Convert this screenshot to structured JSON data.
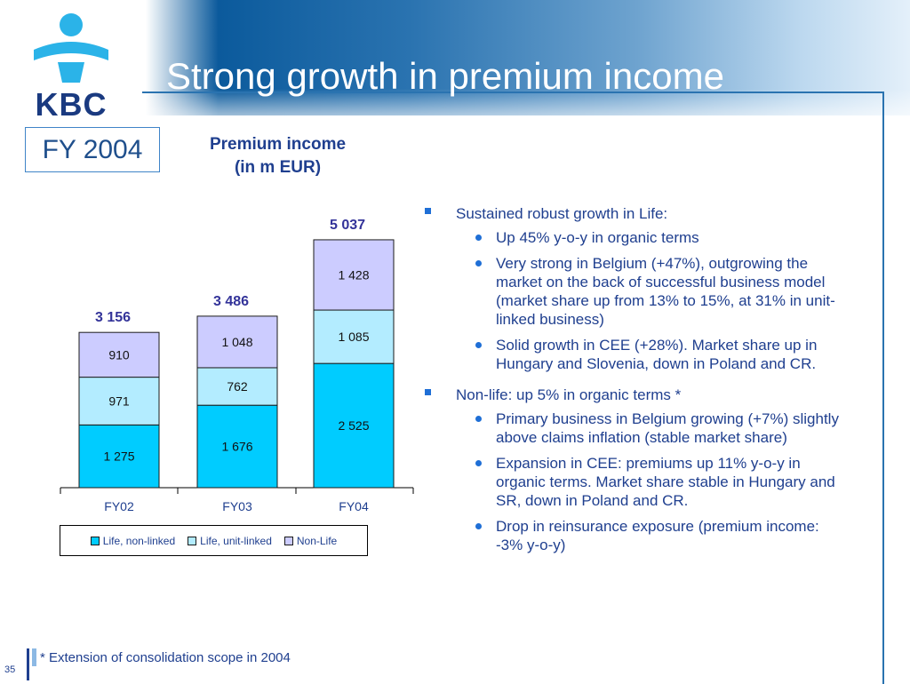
{
  "slide": {
    "title": "Strong growth in premium income",
    "period_box": "FY 2004",
    "page_number": "35",
    "footnote": "* Extension of consolidation scope in 2004",
    "logo_text": "KBC"
  },
  "colors": {
    "title_text": "#ffffff",
    "body_text": "#1f3f8f",
    "life_non_linked": "#00ccff",
    "life_unit_linked": "#b3ecff",
    "non_life": "#ccccff",
    "total_label": "#333399",
    "bullet_marker": "#1f6fd6"
  },
  "chart_data": {
    "type": "bar",
    "stacked": true,
    "title": "Premium income\n(in m EUR)",
    "title_lines": [
      "Premium income",
      "(in m EUR)"
    ],
    "categories": [
      "FY02",
      "FY03",
      "FY04"
    ],
    "series": [
      {
        "name": "Life, non-linked",
        "values": [
          1275,
          1676,
          2525
        ],
        "labels": [
          "1 275",
          "1 676",
          "2 525"
        ],
        "color": "#00ccff"
      },
      {
        "name": "Life, unit-linked",
        "values": [
          971,
          762,
          1085
        ],
        "labels": [
          "971",
          "762",
          "1 085"
        ],
        "color": "#b3ecff"
      },
      {
        "name": "Non-Life",
        "values": [
          910,
          1048,
          1428
        ],
        "labels": [
          "910",
          "1 048",
          "1 428"
        ],
        "color": "#ccccff"
      }
    ],
    "totals": [
      3156,
      3486,
      5037
    ],
    "total_labels": [
      "3 156",
      "3 486",
      "5 037"
    ],
    "legend_position": "bottom",
    "grid": false
  },
  "bullets": [
    {
      "text": "Sustained robust growth in Life:",
      "sub": [
        "Up 45% y-o-y in organic terms",
        "Very strong in Belgium (+47%), outgrowing the market on the back of successful business model (market share up from 13% to 15%, at  31% in unit-linked business)",
        "Solid growth in CEE (+28%). Market share up in Hungary and Slovenia, down in Poland and CR."
      ]
    },
    {
      "text": "Non-life: up 5% in organic terms *",
      "sub": [
        "Primary business in Belgium growing (+7%) slightly above claims inflation (stable market share)",
        "Expansion in CEE: premiums up 11% y-o-y in organic terms. Market share stable in Hungary and SR, down in Poland and CR.",
        "Drop in reinsurance exposure (premium income: -3% y-o-y)"
      ]
    }
  ]
}
